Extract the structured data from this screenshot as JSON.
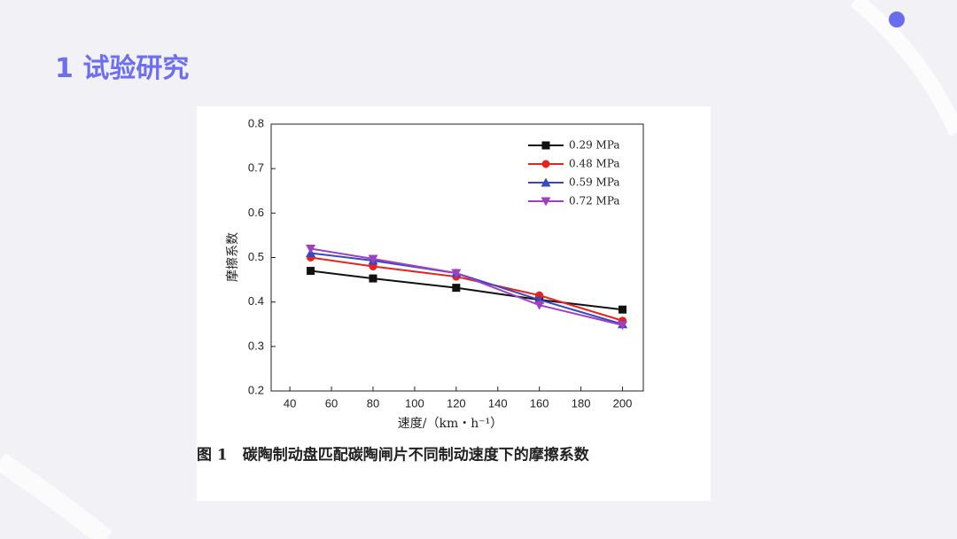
{
  "slide": {
    "title": "1 试验研究"
  },
  "chart_data": {
    "type": "line",
    "caption": "图 1　碳陶制动盘匹配碳陶闸片不同制动速度下的摩擦系数",
    "xlabel": "速度/（km・h⁻¹）",
    "ylabel": "摩擦系数",
    "x": [
      50,
      80,
      120,
      160,
      200
    ],
    "series": [
      {
        "name": "0.29 MPa",
        "color": "#111111",
        "marker": "square",
        "values": [
          0.47,
          0.453,
          0.432,
          0.405,
          0.383
        ]
      },
      {
        "name": "0.48 MPa",
        "color": "#e8221c",
        "marker": "circle",
        "values": [
          0.5,
          0.48,
          0.457,
          0.415,
          0.358
        ]
      },
      {
        "name": "0.59 MPa",
        "color": "#3848c0",
        "marker": "triangle",
        "values": [
          0.51,
          0.493,
          0.465,
          0.405,
          0.35
        ]
      },
      {
        "name": "0.72 MPa",
        "color": "#a040c0",
        "marker": "triangle-down",
        "values": [
          0.52,
          0.497,
          0.465,
          0.393,
          0.348
        ]
      }
    ],
    "xlim": [
      31,
      210
    ],
    "xticks": [
      40,
      60,
      80,
      100,
      120,
      140,
      160,
      180,
      200
    ],
    "ylim": [
      0.2,
      0.8
    ],
    "yticks": [
      0.2,
      0.3,
      0.4,
      0.5,
      0.6,
      0.7,
      0.8
    ],
    "legend": "upper-right"
  }
}
